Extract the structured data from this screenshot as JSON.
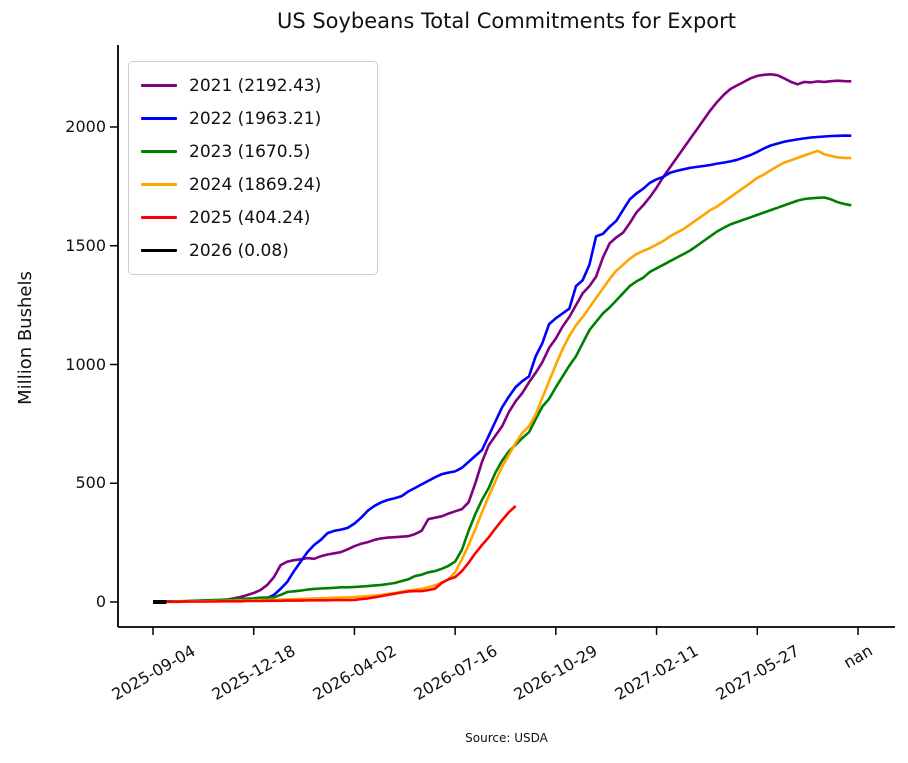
{
  "figure": {
    "title": "US Soybeans Total Commitments for Export",
    "ylabel": "Million Bushels",
    "source": "Source: USDA"
  },
  "chart_data": {
    "type": "line",
    "title": "US Soybeans Total Commitments for Export",
    "xlabel": "",
    "ylabel": "Million Bushels",
    "grid": false,
    "legend_position": "upper left",
    "x_unit": "week index from 2025-09-04",
    "x_tick_indices": [
      0,
      15,
      30,
      45,
      60,
      75,
      90,
      105
    ],
    "x_tick_labels": [
      "2025-09-04",
      "2025-12-18",
      "2026-04-02",
      "2026-07-16",
      "2026-10-29",
      "2027-02-11",
      "2027-05-27",
      "nan"
    ],
    "y_ticks": [
      0,
      500,
      1000,
      1500,
      2000
    ],
    "ylim": [
      0,
      2345
    ],
    "xlim": [
      -5.2,
      110.5
    ],
    "series": [
      {
        "name": "2021",
        "label": "2021 (2192.43)",
        "final_value": 2192.43,
        "color": "#800080",
        "linewidth": 2.6,
        "start_index": 0,
        "values": [
          2,
          2,
          2,
          3,
          3,
          3,
          4,
          4,
          5,
          6,
          8,
          10,
          15,
          21,
          29,
          38,
          50,
          71,
          105,
          155,
          170,
          176,
          180,
          185,
          182,
          193,
          200,
          205,
          210,
          222,
          235,
          245,
          252,
          262,
          268,
          271,
          273,
          275,
          277,
          286,
          300,
          349,
          355,
          361,
          372,
          382,
          391,
          420,
          500,
          590,
          660,
          700,
          740,
          800,
          845,
          880,
          925,
          965,
          1010,
          1070,
          1110,
          1160,
          1200,
          1250,
          1300,
          1330,
          1370,
          1450,
          1510,
          1535,
          1555,
          1595,
          1640,
          1670,
          1705,
          1745,
          1790,
          1830,
          1870,
          1910,
          1950,
          1990,
          2030,
          2070,
          2105,
          2135,
          2160,
          2175,
          2190,
          2205,
          2215,
          2220,
          2222,
          2218,
          2205,
          2190,
          2180,
          2190,
          2188,
          2192,
          2190,
          2193,
          2195,
          2193,
          2192.43
        ]
      },
      {
        "name": "2022",
        "label": "2022 (1963.21)",
        "final_value": 1963.21,
        "color": "#0000ff",
        "linewidth": 2.6,
        "start_index": 0,
        "values": [
          2,
          2,
          2,
          2,
          3,
          3,
          3,
          4,
          4,
          5,
          5,
          6,
          7,
          8,
          9,
          10,
          13,
          17,
          30,
          55,
          85,
          130,
          170,
          210,
          240,
          262,
          290,
          300,
          305,
          312,
          330,
          355,
          385,
          405,
          420,
          430,
          437,
          445,
          465,
          480,
          495,
          510,
          525,
          538,
          545,
          550,
          565,
          590,
          615,
          640,
          700,
          760,
          820,
          865,
          905,
          930,
          950,
          1035,
          1090,
          1170,
          1195,
          1215,
          1235,
          1330,
          1355,
          1420,
          1540,
          1550,
          1580,
          1605,
          1650,
          1695,
          1720,
          1740,
          1765,
          1780,
          1790,
          1807,
          1815,
          1822,
          1828,
          1832,
          1836,
          1840,
          1846,
          1850,
          1855,
          1862,
          1872,
          1882,
          1895,
          1910,
          1922,
          1930,
          1938,
          1943,
          1948,
          1952,
          1956,
          1958,
          1960,
          1962,
          1963,
          1964,
          1963.21
        ]
      },
      {
        "name": "2023",
        "label": "2023 (1670.5)",
        "final_value": 1670.5,
        "color": "#008000",
        "linewidth": 2.6,
        "start_index": 0,
        "values": [
          2,
          2,
          2,
          3,
          3,
          4,
          5,
          6,
          7,
          8,
          9,
          10,
          11,
          13,
          14,
          15,
          18,
          19,
          20,
          30,
          42,
          45,
          48,
          52,
          55,
          57,
          58,
          60,
          62,
          62,
          63,
          65,
          67,
          70,
          72,
          76,
          80,
          88,
          95,
          109,
          115,
          125,
          130,
          140,
          152,
          170,
          220,
          300,
          370,
          430,
          480,
          545,
          595,
          635,
          662,
          690,
          715,
          770,
          823,
          855,
          905,
          950,
          995,
          1035,
          1090,
          1145,
          1180,
          1215,
          1240,
          1270,
          1300,
          1330,
          1350,
          1365,
          1390,
          1405,
          1420,
          1435,
          1450,
          1465,
          1480,
          1500,
          1520,
          1540,
          1560,
          1575,
          1590,
          1600,
          1610,
          1620,
          1630,
          1640,
          1650,
          1660,
          1670,
          1680,
          1690,
          1697,
          1700,
          1702,
          1703,
          1695,
          1683,
          1676,
          1670.5
        ]
      },
      {
        "name": "2024",
        "label": "2024 (1869.24)",
        "final_value": 1869.24,
        "color": "#ffa500",
        "linewidth": 2.6,
        "start_index": 0,
        "values": [
          1,
          1,
          1,
          2,
          2,
          2,
          3,
          3,
          3,
          4,
          4,
          5,
          5,
          6,
          6,
          7,
          8,
          8,
          9,
          10,
          11,
          12,
          13,
          14,
          15,
          16,
          17,
          18,
          19,
          20,
          21,
          23,
          25,
          27,
          30,
          34,
          38,
          43,
          48,
          52,
          55,
          62,
          70,
          82,
          95,
          125,
          180,
          240,
          307,
          378,
          445,
          508,
          570,
          620,
          670,
          712,
          740,
          790,
          860,
          930,
          1000,
          1065,
          1120,
          1165,
          1200,
          1240,
          1280,
          1320,
          1360,
          1395,
          1420,
          1445,
          1465,
          1478,
          1490,
          1505,
          1520,
          1540,
          1555,
          1570,
          1590,
          1610,
          1630,
          1650,
          1665,
          1685,
          1705,
          1725,
          1745,
          1765,
          1786,
          1800,
          1818,
          1835,
          1850,
          1860,
          1870,
          1880,
          1890,
          1900,
          1885,
          1878,
          1872,
          1870,
          1869.24
        ]
      },
      {
        "name": "2025",
        "label": "2025 (404.24)",
        "final_value": 404.24,
        "color": "#ff0000",
        "linewidth": 2.6,
        "start_index": 0,
        "values": [
          1,
          1,
          1,
          1,
          1,
          2,
          2,
          2,
          2,
          2,
          3,
          3,
          3,
          3,
          4,
          4,
          4,
          5,
          5,
          5,
          6,
          6,
          6,
          7,
          7,
          7,
          7,
          8,
          8,
          8,
          9,
          12,
          15,
          20,
          25,
          30,
          35,
          40,
          44,
          46,
          46,
          50,
          56,
          80,
          95,
          105,
          130,
          165,
          205,
          240,
          272,
          310,
          345,
          378,
          404.24
        ]
      },
      {
        "name": "2026",
        "label": "2026 (0.08)",
        "final_value": 0.08,
        "color": "#000000",
        "linewidth": 4,
        "start_index": 0,
        "values": [
          0.03,
          0.05,
          0.08
        ]
      }
    ]
  }
}
